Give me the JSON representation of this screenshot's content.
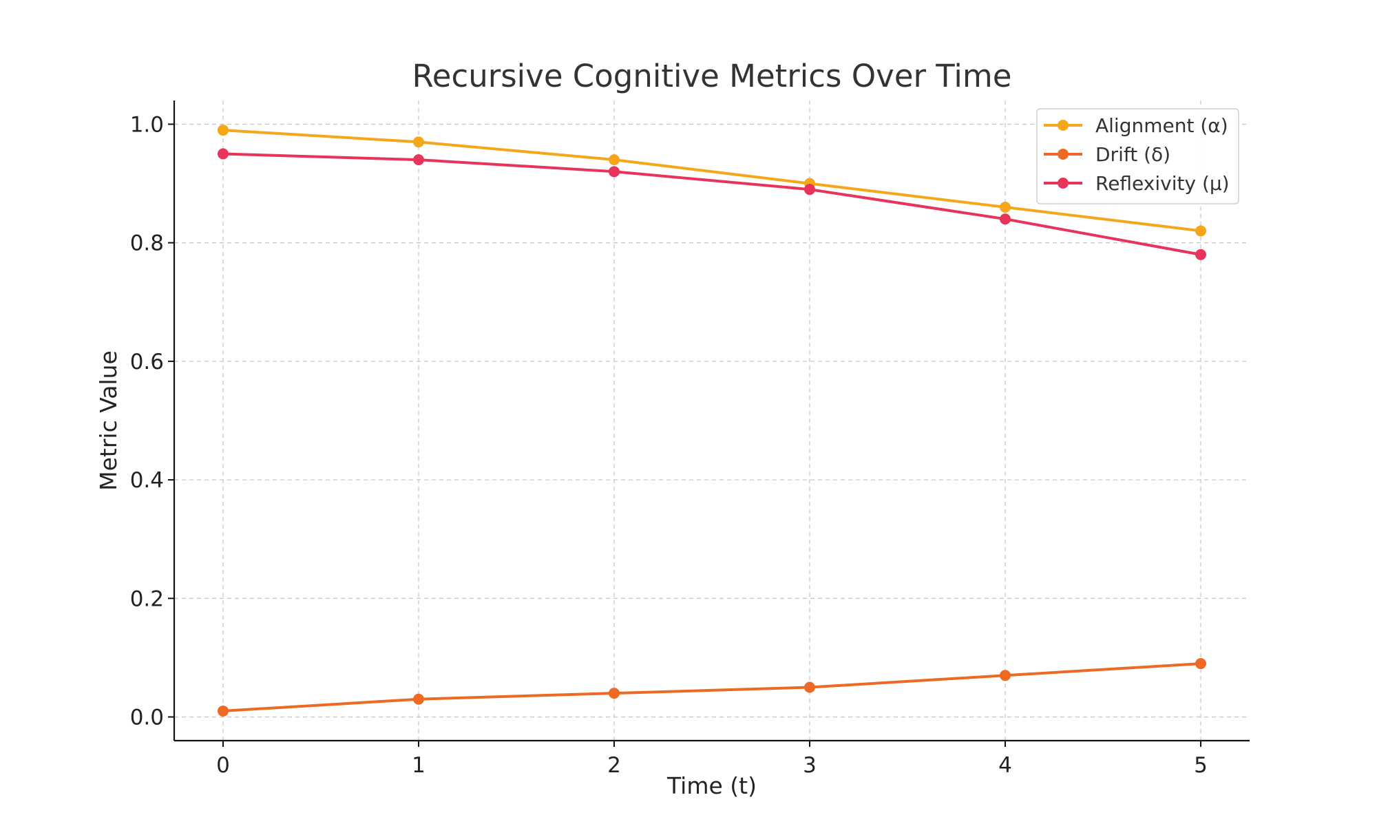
{
  "chart_data": {
    "type": "line",
    "title": "Recursive Cognitive Metrics Over Time",
    "xlabel": "Time (t)",
    "ylabel": "Metric Value",
    "x": [
      0,
      1,
      2,
      3,
      4,
      5
    ],
    "xticks": [
      "0",
      "1",
      "2",
      "3",
      "4",
      "5"
    ],
    "xlim": [
      -0.25,
      5.25
    ],
    "ylim": [
      -0.04,
      1.04
    ],
    "yticks": [
      0.0,
      0.2,
      0.4,
      0.6,
      0.8,
      1.0
    ],
    "ytick_labels": [
      "0.0",
      "0.2",
      "0.4",
      "0.6",
      "0.8",
      "1.0"
    ],
    "grid": true,
    "legend_position": "top-right",
    "series": [
      {
        "name": "Alignment (α)",
        "color": "#F5A71B",
        "values": [
          0.99,
          0.97,
          0.94,
          0.9,
          0.86,
          0.82
        ]
      },
      {
        "name": "Drift (δ)",
        "color": "#EE6A24",
        "values": [
          0.01,
          0.03,
          0.04,
          0.05,
          0.07,
          0.09
        ]
      },
      {
        "name": "Reflexivity (μ)",
        "color": "#E8345A",
        "values": [
          0.95,
          0.94,
          0.92,
          0.89,
          0.84,
          0.78
        ]
      }
    ]
  }
}
